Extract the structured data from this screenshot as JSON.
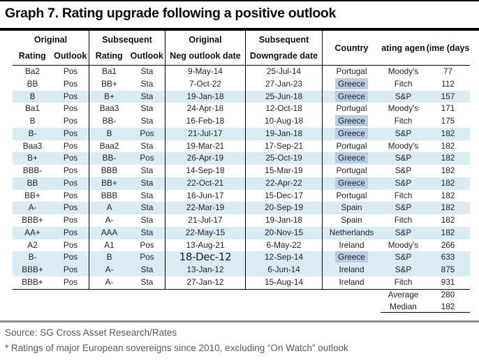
{
  "title": "Graph 7. Rating upgrade following a positive outlook",
  "colors": {
    "row_highlight": "#d9ecf3",
    "greece_highlight": "#b8cce4",
    "rule_black": "#000000",
    "rule_gray": "#8c8c8c",
    "footer_text": "#595959"
  },
  "table": {
    "header": {
      "original_title": "Original",
      "subsequent_title": "Subsequent",
      "rating_label": "Rating",
      "outlook_label": "Outlook",
      "neg_group_title": "Original",
      "neg_sub": "Neg outlook date",
      "down_group_title": "Subsequent",
      "down_sub": "Downgrade date",
      "country": "Country",
      "agency": "ating agen",
      "time": "(ime (days"
    },
    "rows": [
      {
        "r1": "Ba2",
        "o1": "Pos",
        "r2": "Ba1",
        "o2": "Sta",
        "d1": "9-May-14",
        "d2": "25-Jul-14",
        "country": "Portugal",
        "agency": "Moody's",
        "days": 77,
        "hl": false,
        "country_hl": false,
        "big_date": false
      },
      {
        "r1": "BB",
        "o1": "Pos",
        "r2": "BB+",
        "o2": "Sta",
        "d1": "7-Oct-22",
        "d2": "27-Jan-23",
        "country": "Greece",
        "agency": "Fitch",
        "days": 112,
        "hl": false,
        "country_hl": true,
        "big_date": false
      },
      {
        "r1": "B",
        "o1": "Pos",
        "r2": "B+",
        "o2": "Sta",
        "d1": "19-Jan-18",
        "d2": "25-Jun-18",
        "country": "Greece",
        "agency": "S&P",
        "days": 157,
        "hl": true,
        "country_hl": true,
        "big_date": false
      },
      {
        "r1": "Ba1",
        "o1": "Pos",
        "r2": "Baa3",
        "o2": "Sta",
        "d1": "24-Apr-18",
        "d2": "12-Oct-18",
        "country": "Portugal",
        "agency": "Moody's",
        "days": 171,
        "hl": false,
        "country_hl": false,
        "big_date": false
      },
      {
        "r1": "B",
        "o1": "Pos",
        "r2": "BB-",
        "o2": "Sta",
        "d1": "16-Feb-18",
        "d2": "10-Aug-18",
        "country": "Greece",
        "agency": "Fitch",
        "days": 175,
        "hl": false,
        "country_hl": true,
        "big_date": false
      },
      {
        "r1": "B-",
        "o1": "Pos",
        "r2": "B",
        "o2": "Pos",
        "d1": "21-Jul-17",
        "d2": "19-Jan-18",
        "country": "Greece",
        "agency": "S&P",
        "days": 182,
        "hl": true,
        "country_hl": true,
        "big_date": false
      },
      {
        "r1": "Baa3",
        "o1": "Pos",
        "r2": "Baa2",
        "o2": "Sta",
        "d1": "19-Mar-21",
        "d2": "17-Sep-21",
        "country": "Portugal",
        "agency": "Moody's",
        "days": 182,
        "hl": false,
        "country_hl": false,
        "big_date": false
      },
      {
        "r1": "B+",
        "o1": "Pos",
        "r2": "BB-",
        "o2": "Pos",
        "d1": "26-Apr-19",
        "d2": "25-Oct-19",
        "country": "Greece",
        "agency": "S&P",
        "days": 182,
        "hl": true,
        "country_hl": true,
        "big_date": false
      },
      {
        "r1": "BBB-",
        "o1": "Pos",
        "r2": "BBB",
        "o2": "Sta",
        "d1": "14-Sep-18",
        "d2": "15-Mar-19",
        "country": "Portugal",
        "agency": "S&P",
        "days": 182,
        "hl": false,
        "country_hl": false,
        "big_date": false
      },
      {
        "r1": "BB",
        "o1": "Pos",
        "r2": "BB+",
        "o2": "Sta",
        "d1": "22-Oct-21",
        "d2": "22-Apr-22",
        "country": "Greece",
        "agency": "S&P",
        "days": 182,
        "hl": true,
        "country_hl": true,
        "big_date": false
      },
      {
        "r1": "BB+",
        "o1": "Pos",
        "r2": "BBB",
        "o2": "Sta",
        "d1": "16-Jun-17",
        "d2": "15-Dec-17",
        "country": "Portugal",
        "agency": "Fitch",
        "days": 182,
        "hl": false,
        "country_hl": false,
        "big_date": false
      },
      {
        "r1": "A-",
        "o1": "Pos",
        "r2": "A",
        "o2": "Sta",
        "d1": "22-Mar-19",
        "d2": "20-Sep-19",
        "country": "Spain",
        "agency": "S&P",
        "days": 182,
        "hl": true,
        "country_hl": false,
        "big_date": false
      },
      {
        "r1": "BBB+",
        "o1": "Pos",
        "r2": "A-",
        "o2": "Sta",
        "d1": "21-Jul-17",
        "d2": "19-Jan-18",
        "country": "Spain",
        "agency": "Fitch",
        "days": 182,
        "hl": false,
        "country_hl": false,
        "big_date": false
      },
      {
        "r1": "AA+",
        "o1": "Pos",
        "r2": "AAA",
        "o2": "Sta",
        "d1": "22-May-15",
        "d2": "20-Nov-15",
        "country": "Netherlands",
        "agency": "S&P",
        "days": 182,
        "hl": true,
        "country_hl": false,
        "big_date": false
      },
      {
        "r1": "A2",
        "o1": "Pos",
        "r2": "A1",
        "o2": "Pos",
        "d1": "13-Aug-21",
        "d2": "6-May-22",
        "country": "Ireland",
        "agency": "Moody's",
        "days": 266,
        "hl": false,
        "country_hl": false,
        "big_date": false
      },
      {
        "r1": "B-",
        "o1": "Pos",
        "r2": "B",
        "o2": "Pos",
        "d1": "18-Dec-12",
        "d2": "12-Sep-14",
        "country": "Greece",
        "agency": "S&P",
        "days": 633,
        "hl": true,
        "country_hl": true,
        "big_date": true
      },
      {
        "r1": "BBB+",
        "o1": "Pos",
        "r2": "A-",
        "o2": "Sta",
        "d1": "13-Jan-12",
        "d2": "6-Jun-14",
        "country": "Ireland",
        "agency": "S&P",
        "days": 875,
        "hl": true,
        "country_hl": false,
        "big_date": false
      },
      {
        "r1": "BBB+",
        "o1": "Pos",
        "r2": "A-",
        "o2": "Sta",
        "d1": "27-Jan-12",
        "d2": "15-Aug-14",
        "country": "Ireland",
        "agency": "Fitch",
        "days": 931,
        "hl": false,
        "country_hl": false,
        "big_date": false
      }
    ],
    "summary": {
      "average_label": "Average",
      "average_value": "280",
      "median_label": "Median",
      "median_value": "182"
    }
  },
  "footer": {
    "source": "Source: SG Cross Asset Research/Rates",
    "note": "* Ratings of major European sovereigns since 2010, excluding “On Watch” outlook"
  }
}
